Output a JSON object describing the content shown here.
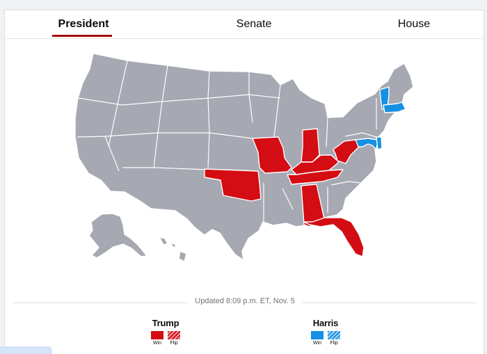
{
  "tabs": [
    {
      "label": "President",
      "active": true
    },
    {
      "label": "Senate",
      "active": false
    },
    {
      "label": "House",
      "active": false
    }
  ],
  "colors": {
    "trump_win": "#d40c13",
    "harris_win": "#1590e3",
    "undecided": "#a6a8b2",
    "tab_underline": "#a8090d"
  },
  "map": {
    "states_called": {
      "trump": [
        "Missouri",
        "Oklahoma",
        "Indiana",
        "Kentucky",
        "West Virginia",
        "Tennessee",
        "Alabama",
        "Florida"
      ],
      "harris": [
        "Vermont",
        "Massachusetts",
        "Maryland",
        "Delaware"
      ]
    }
  },
  "updated": "Updated 8:09 p.m. ET, Nov. 5",
  "legend": [
    {
      "name": "Trump",
      "win_label": "Win",
      "flip_label": "Flip",
      "color": "#d40c13"
    },
    {
      "name": "Harris",
      "win_label": "Win",
      "flip_label": "Flip",
      "color": "#1590e3"
    }
  ]
}
